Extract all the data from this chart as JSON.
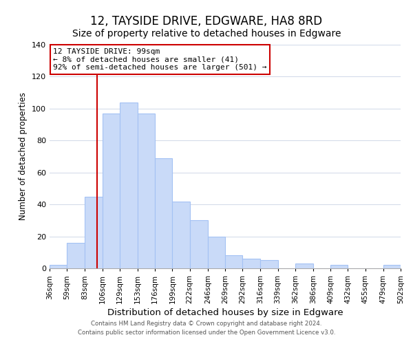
{
  "title": "12, TAYSIDE DRIVE, EDGWARE, HA8 8RD",
  "subtitle": "Size of property relative to detached houses in Edgware",
  "xlabel": "Distribution of detached houses by size in Edgware",
  "ylabel": "Number of detached properties",
  "footer_line1": "Contains HM Land Registry data © Crown copyright and database right 2024.",
  "footer_line2": "Contains public sector information licensed under the Open Government Licence v3.0.",
  "bar_labels": [
    "36sqm",
    "59sqm",
    "83sqm",
    "106sqm",
    "129sqm",
    "153sqm",
    "176sqm",
    "199sqm",
    "222sqm",
    "246sqm",
    "269sqm",
    "292sqm",
    "316sqm",
    "339sqm",
    "362sqm",
    "386sqm",
    "409sqm",
    "432sqm",
    "455sqm",
    "479sqm",
    "502sqm"
  ],
  "bar_values": [
    2,
    16,
    45,
    97,
    104,
    97,
    69,
    42,
    30,
    20,
    8,
    6,
    5,
    0,
    3,
    0,
    2,
    0,
    0,
    2
  ],
  "bar_edges": [
    36,
    59,
    83,
    106,
    129,
    153,
    176,
    199,
    222,
    246,
    269,
    292,
    316,
    339,
    362,
    386,
    409,
    432,
    455,
    479,
    502
  ],
  "bar_color": "#c9daf8",
  "bar_edgecolor": "#a4c2f4",
  "vline_x": 99,
  "vline_color": "#cc0000",
  "annotation_title": "12 TAYSIDE DRIVE: 99sqm",
  "annotation_line1": "← 8% of detached houses are smaller (41)",
  "annotation_line2": "92% of semi-detached houses are larger (501) →",
  "annotation_box_edgecolor": "#cc0000",
  "annotation_box_facecolor": "#ffffff",
  "ylim": [
    0,
    140
  ],
  "yticks": [
    0,
    20,
    40,
    60,
    80,
    100,
    120,
    140
  ],
  "title_fontsize": 12,
  "subtitle_fontsize": 10,
  "xlabel_fontsize": 9.5,
  "ylabel_fontsize": 8.5,
  "annotation_fontsize": 8,
  "tick_fontsize": 7.5,
  "ytick_fontsize": 8,
  "background_color": "#ffffff",
  "grid_color": "#d0d8e8"
}
